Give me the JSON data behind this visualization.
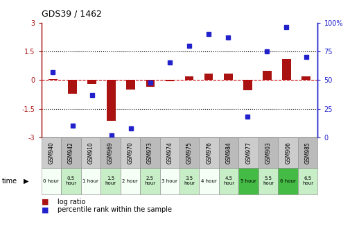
{
  "title": "GDS39 / 1462",
  "samples": [
    "GSM940",
    "GSM942",
    "GSM910",
    "GSM969",
    "GSM970",
    "GSM973",
    "GSM974",
    "GSM975",
    "GSM976",
    "GSM984",
    "GSM977",
    "GSM903",
    "GSM906",
    "GSM985"
  ],
  "time_labels": [
    "0 hour",
    "0.5\nhour",
    "1 hour",
    "1.5\nhour",
    "2 hour",
    "2.5\nhour",
    "3 hour",
    "3.5\nhour",
    "4 hour",
    "4.5\nhour",
    "5 hour",
    "5.5\nhour",
    "6 hour",
    "6.5\nhour"
  ],
  "log_ratio": [
    0.05,
    -0.72,
    -0.2,
    -2.15,
    -0.5,
    -0.35,
    -0.07,
    0.18,
    0.35,
    0.32,
    -0.52,
    0.48,
    1.1,
    0.2
  ],
  "percentile": [
    57,
    10,
    37,
    2,
    8,
    48,
    65,
    80,
    90,
    87,
    18,
    75,
    96,
    70
  ],
  "time_colors": [
    "#f5fff5",
    "#c8eec8",
    "#f5fff5",
    "#c8eec8",
    "#f5fff5",
    "#c8eec8",
    "#f5fff5",
    "#c8eec8",
    "#f5fff5",
    "#c8eec8",
    "#44bb44",
    "#c8eec8",
    "#44bb44",
    "#c8eec8"
  ],
  "bar_color": "#aa1111",
  "dot_color": "#2222cc",
  "zero_line_color": "#cc0000",
  "ylim_left": [
    -3,
    3
  ],
  "ylim_right": [
    0,
    100
  ],
  "yticks_left": [
    -3,
    -1.5,
    0,
    1.5,
    3
  ],
  "yticks_right": [
    0,
    25,
    50,
    75,
    100
  ],
  "ytick_labels_left": [
    "-3",
    "-1.5",
    "0",
    "1.5",
    "3"
  ],
  "ytick_labels_right": [
    "0",
    "25",
    "50",
    "75",
    "100%"
  ],
  "bg_plot": "#ffffff",
  "bg_names_odd": "#cccccc",
  "bg_names_even": "#bbbbbb",
  "table_border": "#888888"
}
